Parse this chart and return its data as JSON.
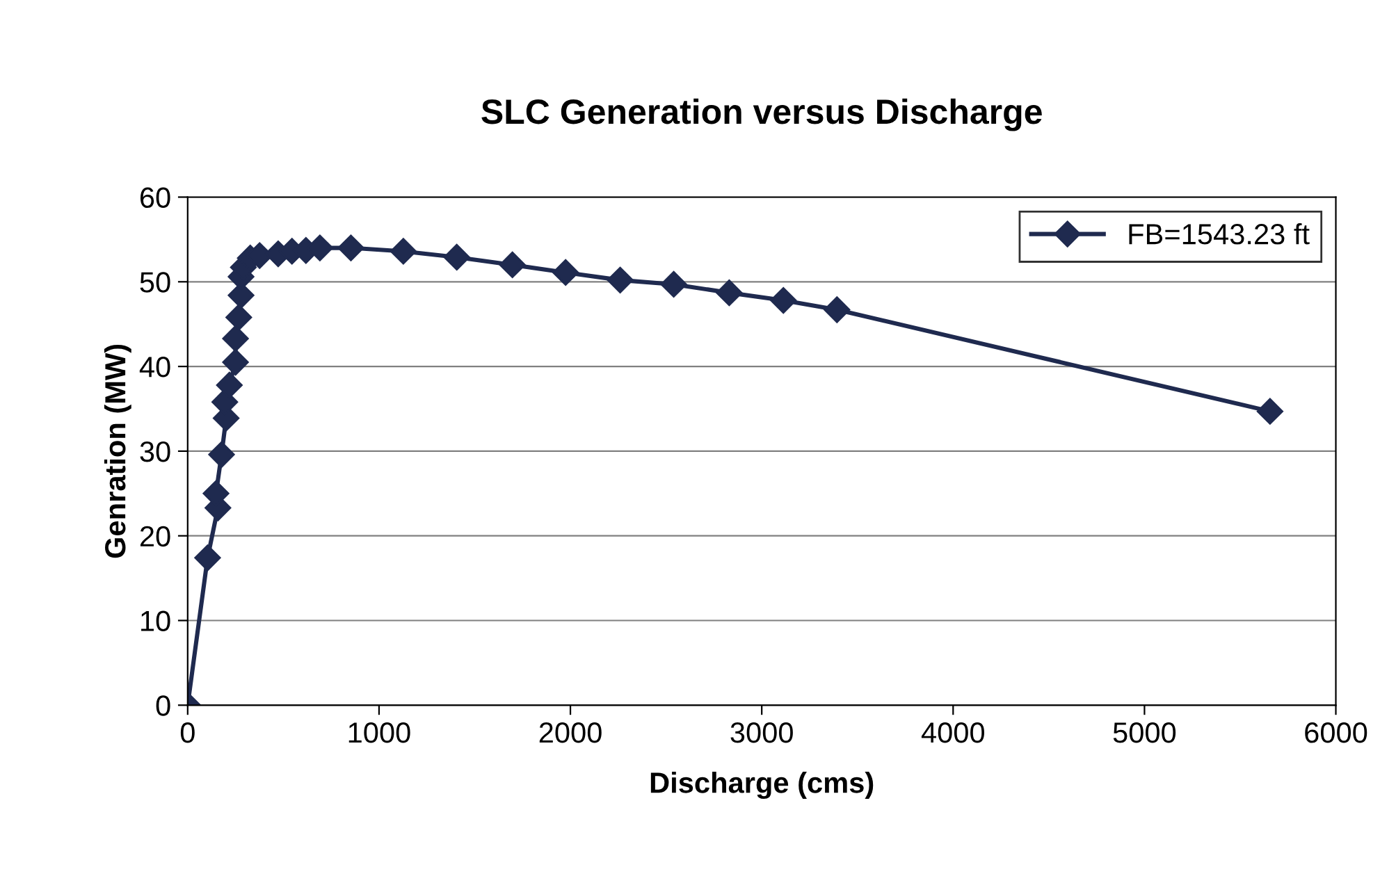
{
  "chart_data": {
    "type": "line",
    "title": "SLC Generation versus Discharge",
    "xlabel": "Discharge (cms)",
    "ylabel": "Genration (MW)",
    "xlim": [
      0,
      6000
    ],
    "xticks": [
      0,
      1000,
      2000,
      3000,
      4000,
      5000,
      6000
    ],
    "ylim": [
      0,
      60
    ],
    "yticks": [
      0,
      10,
      20,
      30,
      40,
      50,
      60
    ],
    "grid": "y",
    "legend": "top right",
    "marker": "diamond",
    "line_style": "solid",
    "series": [
      {
        "name": "FB=1543.23 ft",
        "color": "#1f2a4f",
        "x": [
          0,
          104,
          158,
          148,
          177,
          201,
          194,
          218,
          250,
          250,
          267,
          279,
          279,
          291,
          327,
          376,
          473,
          545,
          618,
          691,
          853,
          1127,
          1406,
          1697,
          1975,
          2260,
          2540,
          2830,
          3113,
          3393,
          5656
        ],
        "values": [
          0,
          17.4,
          23.3,
          25,
          29.6,
          33.9,
          35.8,
          37.8,
          40.5,
          43.3,
          45.8,
          48.4,
          50.6,
          51.7,
          52.8,
          53.1,
          53.3,
          53.6,
          53.7,
          54.0,
          54.0,
          53.6,
          52.9,
          52.0,
          51.1,
          50.2,
          49.7,
          48.7,
          47.8,
          46.7,
          34.7
        ]
      }
    ]
  }
}
